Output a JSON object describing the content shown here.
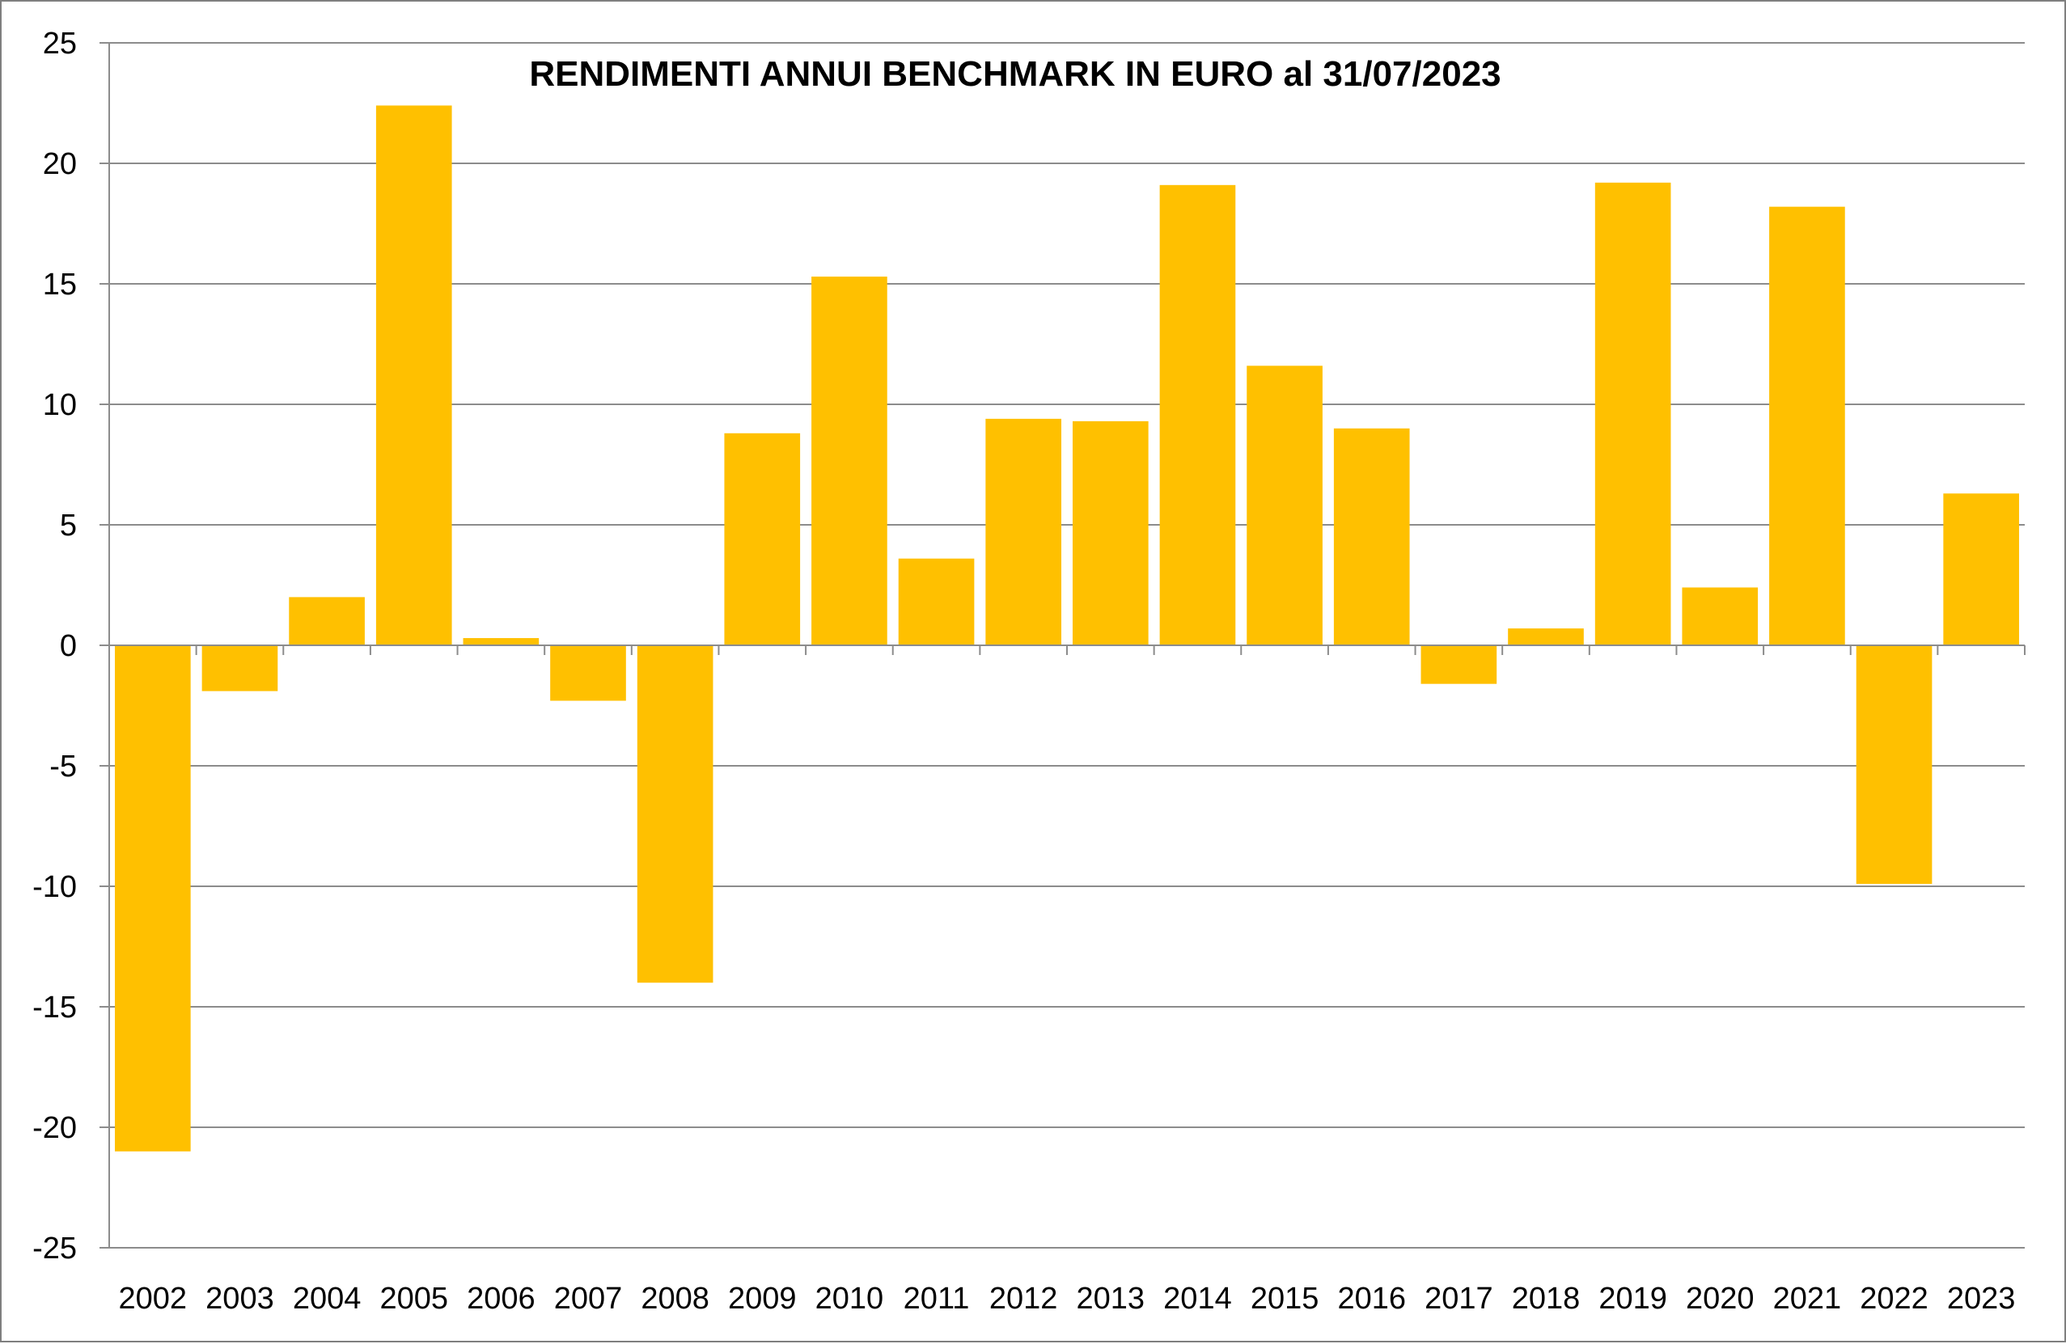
{
  "chart_data": {
    "type": "bar",
    "title": "RENDIMENTI ANNUI BENCHMARK IN EURO al 31/07/2023",
    "xlabel": "",
    "ylabel": "",
    "categories": [
      "2002",
      "2003",
      "2004",
      "2005",
      "2006",
      "2007",
      "2008",
      "2009",
      "2010",
      "2011",
      "2012",
      "2013",
      "2014",
      "2015",
      "2016",
      "2017",
      "2018",
      "2019",
      "2020",
      "2021",
      "2022",
      "2023"
    ],
    "values": [
      -21.0,
      -1.9,
      2.0,
      22.4,
      0.3,
      -2.3,
      -14.0,
      8.8,
      15.3,
      3.6,
      9.4,
      9.3,
      19.1,
      11.6,
      9.0,
      -1.6,
      0.7,
      19.2,
      2.4,
      18.2,
      -9.9,
      6.3
    ],
    "ylim": [
      -25,
      25
    ],
    "yticks": [
      25,
      20,
      15,
      10,
      5,
      0,
      -5,
      -10,
      -15,
      -20,
      -25
    ],
    "grid": true,
    "legend": "none",
    "bar_color": "#ffc000",
    "grid_color": "#8c8c8c"
  }
}
